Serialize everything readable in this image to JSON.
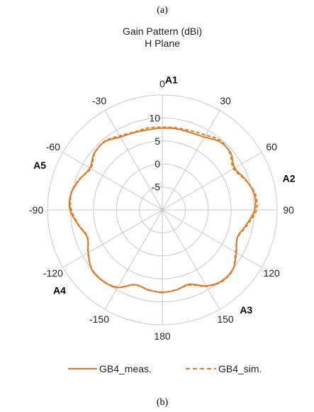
{
  "panel_top_label": "(a)",
  "panel_bottom_label": "(b)",
  "chart_data": {
    "type": "polar-line",
    "title": "Gain Pattern (dBi)",
    "subtitle": "H Plane",
    "radial_ticks": [
      "-5",
      "0",
      "5",
      "10"
    ],
    "radial_values": [
      -5,
      0,
      5,
      10
    ],
    "r_range": [
      -10,
      15
    ],
    "angle_ticks": [
      0,
      30,
      60,
      90,
      120,
      150,
      180,
      -150,
      -120,
      -90,
      -60,
      -30
    ],
    "angle_tick_labels": [
      "0",
      "30",
      "60",
      "90",
      "120",
      "150",
      "180",
      "-150",
      "-120",
      "-90",
      "-60",
      "-30"
    ],
    "antenna_labels": [
      {
        "label": "A1",
        "angle": 4
      },
      {
        "label": "A2",
        "angle": 76
      },
      {
        "label": "A3",
        "angle": 140
      },
      {
        "label": "A4",
        "angle": -128
      },
      {
        "label": "A5",
        "angle": -70
      }
    ],
    "series": [
      {
        "name": "GB4_meas.",
        "color": "#E07A25",
        "dash": "solid",
        "angles": [
          -180,
          -170,
          -160,
          -150,
          -140,
          -130,
          -120,
          -110,
          -100,
          -90,
          -80,
          -70,
          -60,
          -50,
          -40,
          -30,
          -20,
          -10,
          0,
          10,
          20,
          30,
          40,
          50,
          60,
          70,
          80,
          90,
          100,
          110,
          120,
          130,
          140,
          150,
          160,
          170,
          180
        ],
        "values": [
          7.9,
          7.7,
          7.3,
          9.5,
          10.2,
          10.1,
          8.6,
          7.4,
          8.6,
          10.1,
          10.2,
          9.2,
          8.2,
          9.3,
          9.4,
          8.3,
          7.9,
          7.7,
          7.8,
          7.9,
          7.9,
          8.3,
          9.4,
          9.4,
          8.2,
          9.3,
          10.3,
          10.1,
          8.6,
          7.4,
          8.6,
          10.1,
          10.2,
          9.1,
          7.2,
          7.7,
          7.9
        ]
      },
      {
        "name": "GB4_sim.",
        "color": "#E07A25",
        "dash": "dashed",
        "angles": [
          -180,
          -170,
          -160,
          -150,
          -140,
          -130,
          -120,
          -110,
          -100,
          -90,
          -80,
          -70,
          -60,
          -50,
          -40,
          -30,
          -20,
          -10,
          0,
          10,
          20,
          30,
          40,
          50,
          60,
          70,
          80,
          90,
          100,
          110,
          120,
          130,
          140,
          150,
          160,
          170,
          180
        ],
        "values": [
          8.0,
          7.6,
          7.4,
          9.4,
          10.2,
          10.0,
          8.7,
          7.3,
          8.5,
          9.8,
          10.2,
          9.3,
          8.0,
          9.2,
          9.5,
          8.6,
          8.0,
          8.1,
          8.0,
          8.1,
          8.3,
          8.8,
          9.7,
          9.2,
          7.9,
          9.2,
          10.5,
          10.5,
          8.8,
          7.5,
          8.4,
          10.1,
          10.3,
          9.2,
          7.4,
          7.6,
          8.0
        ]
      }
    ]
  }
}
